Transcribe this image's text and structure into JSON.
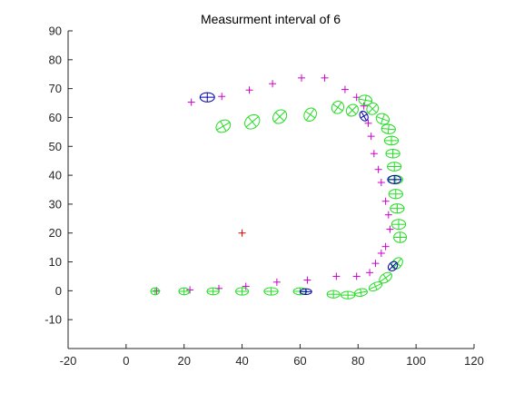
{
  "chart_data": {
    "type": "scatter",
    "title": "Measurment interval of 6",
    "xlabel": "",
    "ylabel": "",
    "xlim": [
      -20,
      120
    ],
    "ylim": [
      -20,
      90
    ],
    "x_ticks": [
      -20,
      0,
      20,
      40,
      60,
      80,
      100,
      120
    ],
    "y_ticks": [
      -10,
      0,
      10,
      20,
      30,
      40,
      50,
      60,
      70,
      80,
      90
    ],
    "grid": false,
    "legend": "none",
    "colors": {
      "magenta": "#cc00cc",
      "red": "#e00000",
      "green": "#22dd22",
      "blue": "#0000aa"
    },
    "series": [
      {
        "marker": "plus",
        "color": "magenta",
        "points": [
          [
            22.5,
            65.3
          ],
          [
            33,
            67.3
          ],
          [
            42.5,
            69.5
          ],
          [
            50.5,
            71.7
          ],
          [
            60.5,
            73.7
          ],
          [
            68.5,
            73.7
          ],
          [
            75.5,
            69.7
          ],
          [
            79.5,
            67
          ],
          [
            82,
            64
          ],
          [
            83.5,
            58
          ],
          [
            84.5,
            53.5
          ],
          [
            85.5,
            47.5
          ],
          [
            87,
            42
          ],
          [
            88,
            37.5
          ],
          [
            89.5,
            31
          ],
          [
            90.5,
            26.3
          ],
          [
            91,
            21.3
          ],
          [
            89.5,
            15.3
          ],
          [
            88,
            13
          ],
          [
            86,
            9.5
          ],
          [
            84,
            6.3
          ],
          [
            79.5,
            5
          ],
          [
            72.5,
            5
          ],
          [
            62.5,
            3.7
          ],
          [
            52,
            3
          ],
          [
            41.3,
            1.5
          ],
          [
            32,
            0.8
          ],
          [
            22,
            0.3
          ],
          [
            10.5,
            0
          ]
        ]
      },
      {
        "marker": "plus",
        "color": "red",
        "points": [
          [
            40,
            20
          ]
        ]
      },
      {
        "marker": "ellipse",
        "color": "green",
        "ellipses": [
          [
            10,
            -0.2,
            1.5,
            1.2,
            0
          ],
          [
            20,
            -0.2,
            1.8,
            1.2,
            0
          ],
          [
            30,
            -0.2,
            2.1,
            1.2,
            0
          ],
          [
            40,
            -0.2,
            2.2,
            1.3,
            0
          ],
          [
            50,
            -0.2,
            2.4,
            1.3,
            0
          ],
          [
            60,
            -0.2,
            2.3,
            1.2,
            0
          ],
          [
            71.5,
            -1.2,
            2.2,
            1.3,
            0
          ],
          [
            76.5,
            -1.5,
            2.4,
            1.3,
            0
          ],
          [
            81,
            -0.6,
            2.2,
            1.3,
            10
          ],
          [
            86,
            1.5,
            2.4,
            1.3,
            25
          ],
          [
            89.5,
            4.5,
            2.4,
            1.5,
            35
          ],
          [
            93.5,
            9.5,
            2.2,
            1.6,
            50
          ],
          [
            94.5,
            18.5,
            1.8,
            2.2,
            90
          ],
          [
            94,
            23,
            1.7,
            2.4,
            90
          ],
          [
            93.5,
            28.5,
            1.6,
            2.4,
            90
          ],
          [
            93,
            33.5,
            1.6,
            2.4,
            90
          ],
          [
            93,
            38.5,
            1.5,
            2.4,
            90
          ],
          [
            92.5,
            43,
            1.5,
            2.4,
            90
          ],
          [
            92,
            47.5,
            1.5,
            2.4,
            90
          ],
          [
            91.5,
            52,
            1.5,
            2.4,
            90
          ],
          [
            90.5,
            56,
            1.6,
            2.4,
            85
          ],
          [
            88.5,
            59.5,
            1.8,
            2.3,
            70
          ],
          [
            85,
            63,
            2.1,
            1.9,
            45
          ],
          [
            82.5,
            66,
            1.7,
            2.3,
            80
          ],
          [
            78,
            62.5,
            2.2,
            1.9,
            45
          ],
          [
            73,
            63.5,
            2.2,
            2.0,
            55
          ],
          [
            63.5,
            61,
            2.4,
            2.0,
            55
          ],
          [
            53,
            60.3,
            2.6,
            2.1,
            45
          ],
          [
            43.5,
            58.5,
            2.8,
            2.2,
            40
          ],
          [
            33.5,
            57,
            2.6,
            2.0,
            30
          ]
        ]
      },
      {
        "marker": "ellipse",
        "color": "blue",
        "ellipses": [
          [
            28,
            67,
            2.5,
            1.6,
            0
          ],
          [
            82,
            60.5,
            1.8,
            1.3,
            -60
          ],
          [
            92.5,
            38.5,
            1.4,
            2.3,
            90
          ],
          [
            92,
            8.5,
            1.8,
            1.4,
            45
          ],
          [
            62,
            -0.3,
            2.0,
            1.0,
            0
          ]
        ]
      }
    ]
  }
}
